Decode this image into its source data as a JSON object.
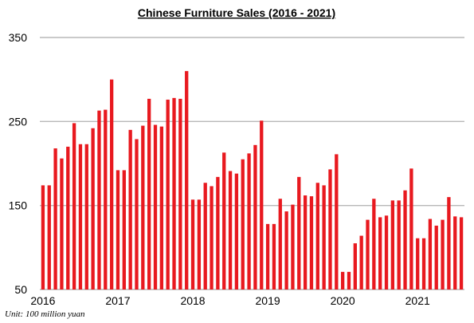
{
  "chart_data": {
    "type": "bar",
    "title": "Chinese Furniture Sales (2016 - 2021)",
    "note": "Unit: 100 million yuan",
    "color": "#e8191f",
    "grid": true,
    "ylim": [
      50,
      350
    ],
    "yticks": [
      "50",
      "150",
      "250",
      "350"
    ],
    "xtick_labels": [
      "2016",
      "2017",
      "2018",
      "2019",
      "2020",
      "2021"
    ],
    "categories": [
      "2016-01",
      "2016-02",
      "2016-03",
      "2016-04",
      "2016-05",
      "2016-06",
      "2016-07",
      "2016-08",
      "2016-09",
      "2016-10",
      "2016-11",
      "2016-12",
      "2017-01",
      "2017-02",
      "2017-03",
      "2017-04",
      "2017-05",
      "2017-06",
      "2017-07",
      "2017-08",
      "2017-09",
      "2017-10",
      "2017-11",
      "2017-12",
      "2018-01",
      "2018-02",
      "2018-03",
      "2018-04",
      "2018-05",
      "2018-06",
      "2018-07",
      "2018-08",
      "2018-09",
      "2018-10",
      "2018-11",
      "2018-12",
      "2019-01",
      "2019-02",
      "2019-03",
      "2019-04",
      "2019-05",
      "2019-06",
      "2019-07",
      "2019-08",
      "2019-09",
      "2019-10",
      "2019-11",
      "2019-12",
      "2020-01",
      "2020-02",
      "2020-03",
      "2020-04",
      "2020-05",
      "2020-06",
      "2020-07",
      "2020-08",
      "2020-09",
      "2020-10",
      "2020-11",
      "2020-12",
      "2021-01",
      "2021-02",
      "2021-03",
      "2021-04",
      "2021-05",
      "2021-06",
      "2021-07",
      "2021-08"
    ],
    "values": [
      174,
      174,
      218,
      206,
      220,
      248,
      223,
      223,
      242,
      263,
      264,
      300,
      192,
      192,
      240,
      229,
      245,
      277,
      246,
      244,
      276,
      278,
      277,
      310,
      157,
      157,
      177,
      173,
      184,
      213,
      191,
      188,
      205,
      212,
      222,
      251,
      128,
      128,
      158,
      143,
      151,
      184,
      162,
      161,
      177,
      174,
      193,
      211,
      71,
      71,
      105,
      114,
      133,
      158,
      136,
      138,
      156,
      156,
      168,
      194,
      111,
      111,
      134,
      126,
      133,
      160,
      137,
      136
    ]
  }
}
